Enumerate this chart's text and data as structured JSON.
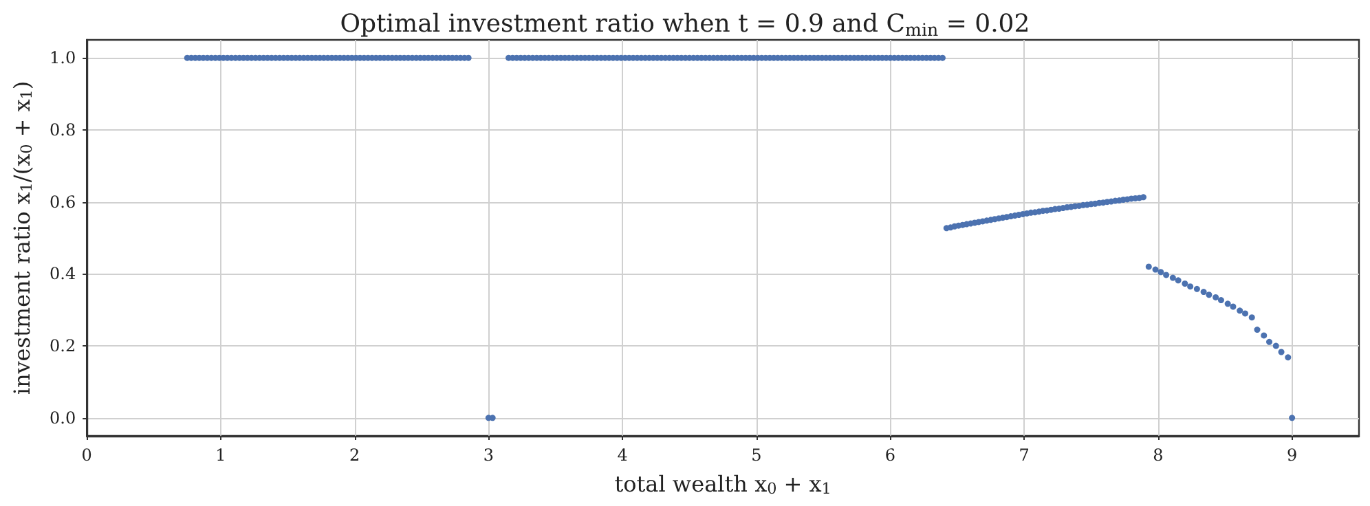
{
  "chart_data": {
    "type": "scatter",
    "title": "Optimal investment ratio when t = 0.9 and C$_{min}$ = 0.02",
    "xlabel": "total wealth x$_{0}$ + x$_{1}$",
    "ylabel": "investment ratio x$_{1}$/(x$_{0}$ + x$_{1}$)",
    "xlim": [
      0,
      9.5
    ],
    "xticks": [
      0,
      1,
      2,
      3,
      4,
      5,
      6,
      7,
      8,
      9
    ],
    "ylim": [
      -0.05,
      1.05
    ],
    "yticks": [
      {
        "value": 0,
        "label": "0.0"
      },
      0.2,
      0.4,
      0.6,
      0.8,
      {
        "value": 1,
        "label": "1.0"
      }
    ],
    "grid": true,
    "marker": "circle",
    "series": [
      {
        "color": "#4c72b0",
        "x": [
          0.75,
          0.78,
          0.81,
          0.84,
          0.87,
          0.9,
          0.93,
          0.96,
          0.99,
          1.02,
          1.05,
          1.08,
          1.11,
          1.14,
          1.17,
          1.2,
          1.23,
          1.26,
          1.29,
          1.32,
          1.35,
          1.38,
          1.41,
          1.44,
          1.47,
          1.5,
          1.53,
          1.56,
          1.59,
          1.62,
          1.65,
          1.68,
          1.71,
          1.74,
          1.77,
          1.8,
          1.83,
          1.86,
          1.89,
          1.92,
          1.95,
          1.98,
          2.01,
          2.04,
          2.07,
          2.1,
          2.13,
          2.16,
          2.19,
          2.22,
          2.25,
          2.28,
          2.31,
          2.34,
          2.37,
          2.4,
          2.43,
          2.46,
          2.49,
          2.52,
          2.55,
          2.58,
          2.61,
          2.64,
          2.67,
          2.7,
          2.73,
          2.76,
          2.79,
          2.82,
          2.85
        ],
        "values": [
          1,
          1,
          1,
          1,
          1,
          1,
          1,
          1,
          1,
          1,
          1,
          1,
          1,
          1,
          1,
          1,
          1,
          1,
          1,
          1,
          1,
          1,
          1,
          1,
          1,
          1,
          1,
          1,
          1,
          1,
          1,
          1,
          1,
          1,
          1,
          1,
          1,
          1,
          1,
          1,
          1,
          1,
          1,
          1,
          1,
          1,
          1,
          1,
          1,
          1,
          1,
          1,
          1,
          1,
          1,
          1,
          1,
          1,
          1,
          1,
          1,
          1,
          1,
          1,
          1,
          1,
          1,
          1,
          1,
          1,
          1
        ]
      },
      {
        "color": "#4c72b0",
        "x": [
          3.0,
          3.03,
          9.0
        ],
        "values": [
          0,
          0,
          0
        ]
      },
      {
        "color": "#4c72b0",
        "x": [
          3.15,
          3.18,
          3.21,
          3.24,
          3.27,
          3.3,
          3.33,
          3.36,
          3.39,
          3.42,
          3.45,
          3.48,
          3.51,
          3.54,
          3.57,
          3.6,
          3.63,
          3.66,
          3.69,
          3.72,
          3.75,
          3.78,
          3.81,
          3.84,
          3.87,
          3.9,
          3.93,
          3.96,
          3.99,
          4.02,
          4.05,
          4.08,
          4.11,
          4.14,
          4.17,
          4.2,
          4.23,
          4.26,
          4.29,
          4.32,
          4.35,
          4.38,
          4.41,
          4.44,
          4.47,
          4.5,
          4.53,
          4.56,
          4.59,
          4.62,
          4.65,
          4.68,
          4.71,
          4.74,
          4.77,
          4.8,
          4.83,
          4.86,
          4.89,
          4.92,
          4.95,
          4.98,
          5.01,
          5.04,
          5.07,
          5.1,
          5.13,
          5.16,
          5.19,
          5.22,
          5.25,
          5.28,
          5.31,
          5.34,
          5.37,
          5.4,
          5.43,
          5.46,
          5.49,
          5.52,
          5.55,
          5.58,
          5.61,
          5.64,
          5.67,
          5.7,
          5.73,
          5.76,
          5.79,
          5.82,
          5.85,
          5.88,
          5.91,
          5.94,
          5.97,
          6.0,
          6.03,
          6.06,
          6.09,
          6.12,
          6.15,
          6.18,
          6.21,
          6.24,
          6.27,
          6.3,
          6.33,
          6.36,
          6.39
        ],
        "values": [
          1,
          1,
          1,
          1,
          1,
          1,
          1,
          1,
          1,
          1,
          1,
          1,
          1,
          1,
          1,
          1,
          1,
          1,
          1,
          1,
          1,
          1,
          1,
          1,
          1,
          1,
          1,
          1,
          1,
          1,
          1,
          1,
          1,
          1,
          1,
          1,
          1,
          1,
          1,
          1,
          1,
          1,
          1,
          1,
          1,
          1,
          1,
          1,
          1,
          1,
          1,
          1,
          1,
          1,
          1,
          1,
          1,
          1,
          1,
          1,
          1,
          1,
          1,
          1,
          1,
          1,
          1,
          1,
          1,
          1,
          1,
          1,
          1,
          1,
          1,
          1,
          1,
          1,
          1,
          1,
          1,
          1,
          1,
          1,
          1,
          1,
          1,
          1,
          1,
          1,
          1,
          1,
          1,
          1,
          1,
          1,
          1,
          1,
          1,
          1,
          1,
          1,
          1,
          1,
          1,
          1,
          1,
          1,
          1
        ]
      },
      {
        "color": "#4c72b0",
        "x": [
          6.42,
          6.45,
          6.48,
          6.51,
          6.54,
          6.57,
          6.6,
          6.63,
          6.66,
          6.69,
          6.72,
          6.75,
          6.78,
          6.81,
          6.84,
          6.87,
          6.9,
          6.93,
          6.96,
          6.99,
          7.02,
          7.05,
          7.08,
          7.11,
          7.14,
          7.17,
          7.2,
          7.23,
          7.26,
          7.29,
          7.32,
          7.35,
          7.38,
          7.41,
          7.44,
          7.47,
          7.5,
          7.53,
          7.56,
          7.59,
          7.62,
          7.65,
          7.68,
          7.71,
          7.74,
          7.77,
          7.8,
          7.83,
          7.86,
          7.89
        ],
        "values": [
          0.527,
          0.529,
          0.532,
          0.534,
          0.536,
          0.538,
          0.54,
          0.542,
          0.544,
          0.546,
          0.548,
          0.55,
          0.552,
          0.554,
          0.556,
          0.558,
          0.56,
          0.562,
          0.564,
          0.566,
          0.568,
          0.57,
          0.571,
          0.573,
          0.575,
          0.576,
          0.578,
          0.58,
          0.581,
          0.583,
          0.585,
          0.586,
          0.588,
          0.589,
          0.591,
          0.592,
          0.594,
          0.595,
          0.597,
          0.598,
          0.6,
          0.601,
          0.603,
          0.604,
          0.606,
          0.607,
          0.609,
          0.61,
          0.611,
          0.613
        ]
      },
      {
        "color": "#4c72b0",
        "x": [
          7.93,
          7.98,
          8.02,
          8.06,
          8.11,
          8.15,
          8.2,
          8.24,
          8.29,
          8.34,
          8.38,
          8.43,
          8.47,
          8.52,
          8.56,
          8.61,
          8.65,
          8.7,
          8.74,
          8.79,
          8.83,
          8.88,
          8.92,
          8.97
        ],
        "values": [
          0.42,
          0.412,
          0.405,
          0.397,
          0.389,
          0.382,
          0.373,
          0.365,
          0.358,
          0.35,
          0.342,
          0.335,
          0.327,
          0.317,
          0.309,
          0.298,
          0.29,
          0.279,
          0.245,
          0.229,
          0.211,
          0.2,
          0.183,
          0.168
        ]
      }
    ]
  }
}
